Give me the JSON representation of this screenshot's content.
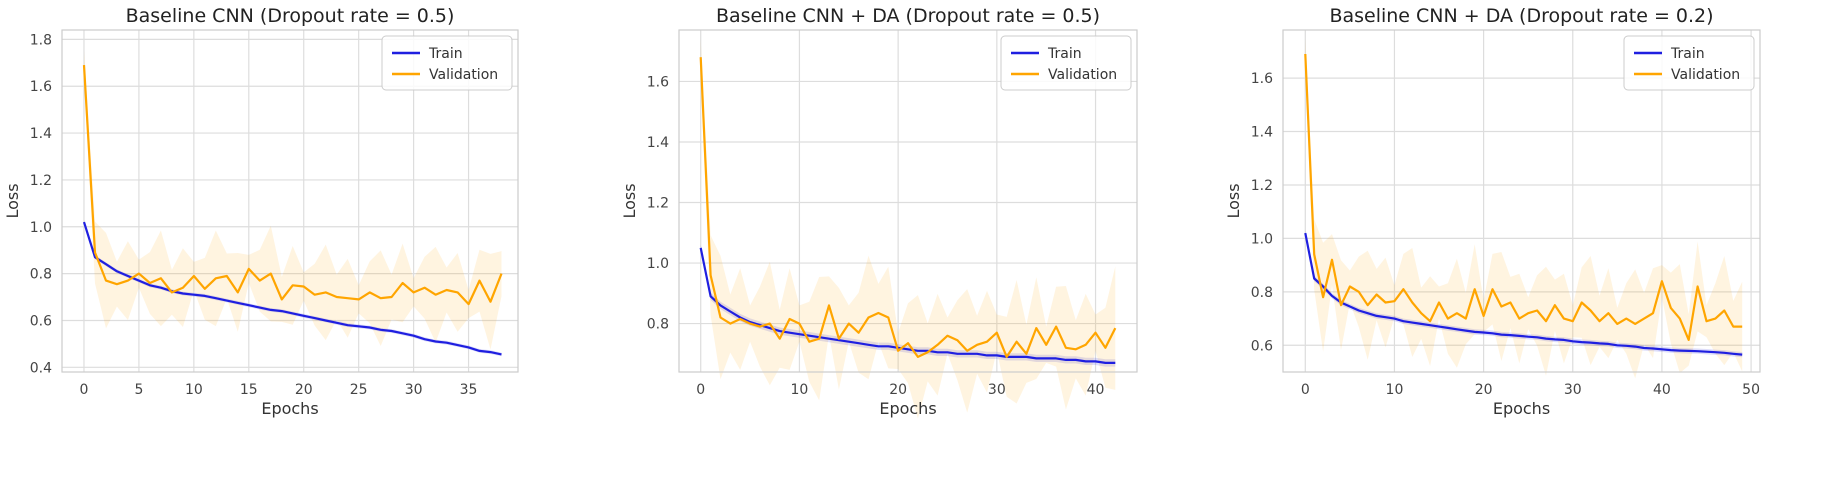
{
  "chart_data": [
    {
      "type": "line",
      "title": "Baseline CNN (Dropout rate = 0.5)",
      "xlabel": "Epochs",
      "ylabel": "Loss",
      "xlim": [
        -2,
        39.5
      ],
      "ylim": [
        0.38,
        1.84
      ],
      "xticks": [
        0,
        5,
        10,
        15,
        20,
        25,
        30,
        35
      ],
      "yticks": [
        0.4,
        0.6,
        0.8,
        1.0,
        1.2,
        1.4,
        1.6,
        1.8
      ],
      "ytick_labels": [
        "0.4",
        "0.6",
        "0.8",
        "1.0",
        "1.2",
        "1.4",
        "1.6",
        "1.8"
      ],
      "grid": true,
      "legend_position": "top-right",
      "series": [
        {
          "name": "Train",
          "color": "#1f1fe0",
          "values": [
            1.02,
            0.87,
            0.84,
            0.81,
            0.79,
            0.77,
            0.75,
            0.74,
            0.725,
            0.715,
            0.71,
            0.705,
            0.695,
            0.685,
            0.675,
            0.665,
            0.655,
            0.645,
            0.64,
            0.63,
            0.62,
            0.61,
            0.6,
            0.59,
            0.58,
            0.575,
            0.57,
            0.56,
            0.555,
            0.545,
            0.535,
            0.52,
            0.51,
            0.505,
            0.495,
            0.485,
            0.47,
            0.465,
            0.455
          ],
          "band": 0.008
        },
        {
          "name": "Validation",
          "color": "#ffa500",
          "values": [
            1.69,
            0.89,
            0.77,
            0.755,
            0.77,
            0.8,
            0.76,
            0.78,
            0.72,
            0.74,
            0.79,
            0.735,
            0.78,
            0.79,
            0.72,
            0.82,
            0.77,
            0.8,
            0.69,
            0.75,
            0.745,
            0.71,
            0.72,
            0.7,
            0.695,
            0.69,
            0.72,
            0.695,
            0.7,
            0.76,
            0.72,
            0.74,
            0.71,
            0.73,
            0.72,
            0.67,
            0.77,
            0.68,
            0.8
          ],
          "band": 0.06
        }
      ]
    },
    {
      "type": "line",
      "title": "Baseline CNN + DA (Dropout rate = 0.5)",
      "xlabel": "Epochs",
      "ylabel": "Loss",
      "xlim": [
        -2.2,
        44.2
      ],
      "ylim": [
        0.64,
        1.77
      ],
      "xticks": [
        0,
        10,
        20,
        30,
        40
      ],
      "yticks": [
        0.8,
        1.0,
        1.2,
        1.4,
        1.6
      ],
      "ytick_labels": [
        "0.8",
        "1.0",
        "1.2",
        "1.4",
        "1.6"
      ],
      "grid": true,
      "legend_position": "top-right",
      "series": [
        {
          "name": "Train",
          "color": "#1f1fe0",
          "values": [
            1.05,
            0.89,
            0.86,
            0.84,
            0.82,
            0.805,
            0.795,
            0.785,
            0.775,
            0.77,
            0.765,
            0.76,
            0.755,
            0.75,
            0.745,
            0.74,
            0.735,
            0.73,
            0.725,
            0.725,
            0.72,
            0.715,
            0.71,
            0.71,
            0.705,
            0.705,
            0.7,
            0.7,
            0.7,
            0.695,
            0.695,
            0.69,
            0.69,
            0.69,
            0.685,
            0.685,
            0.685,
            0.68,
            0.68,
            0.675,
            0.675,
            0.67,
            0.67
          ],
          "band": 0.012
        },
        {
          "name": "Validation",
          "color": "#ffa500",
          "values": [
            1.68,
            0.96,
            0.82,
            0.8,
            0.815,
            0.8,
            0.79,
            0.8,
            0.75,
            0.815,
            0.8,
            0.74,
            0.75,
            0.86,
            0.75,
            0.8,
            0.77,
            0.82,
            0.835,
            0.82,
            0.71,
            0.735,
            0.69,
            0.705,
            0.73,
            0.76,
            0.745,
            0.71,
            0.73,
            0.74,
            0.77,
            0.69,
            0.74,
            0.7,
            0.785,
            0.73,
            0.79,
            0.72,
            0.715,
            0.73,
            0.77,
            0.72,
            0.785
          ],
          "band": 0.06
        }
      ]
    },
    {
      "type": "line",
      "title": "Baseline CNN + DA (Dropout rate = 0.2)",
      "xlabel": "Epochs",
      "ylabel": "Loss",
      "xlim": [
        -2.5,
        51
      ],
      "ylim": [
        0.5,
        1.78
      ],
      "xticks": [
        0,
        10,
        20,
        30,
        40,
        50
      ],
      "yticks": [
        0.6,
        0.8,
        1.0,
        1.2,
        1.4,
        1.6
      ],
      "ytick_labels": [
        "0.6",
        "0.8",
        "1.0",
        "1.2",
        "1.4",
        "1.6"
      ],
      "grid": true,
      "legend_position": "top-right",
      "series": [
        {
          "name": "Train",
          "color": "#1f1fe0",
          "values": [
            1.02,
            0.85,
            0.82,
            0.785,
            0.76,
            0.745,
            0.73,
            0.72,
            0.71,
            0.705,
            0.7,
            0.69,
            0.685,
            0.68,
            0.675,
            0.67,
            0.665,
            0.66,
            0.655,
            0.65,
            0.648,
            0.645,
            0.64,
            0.638,
            0.635,
            0.632,
            0.63,
            0.625,
            0.622,
            0.62,
            0.615,
            0.612,
            0.61,
            0.607,
            0.605,
            0.6,
            0.598,
            0.595,
            0.59,
            0.588,
            0.585,
            0.582,
            0.58,
            0.579,
            0.578,
            0.576,
            0.574,
            0.572,
            0.568,
            0.565
          ],
          "band": 0.01
        },
        {
          "name": "Validation",
          "color": "#ffa500",
          "values": [
            1.69,
            0.94,
            0.78,
            0.92,
            0.75,
            0.82,
            0.8,
            0.75,
            0.79,
            0.76,
            0.765,
            0.81,
            0.76,
            0.72,
            0.69,
            0.76,
            0.7,
            0.72,
            0.7,
            0.81,
            0.71,
            0.81,
            0.745,
            0.76,
            0.7,
            0.72,
            0.73,
            0.69,
            0.75,
            0.7,
            0.69,
            0.76,
            0.73,
            0.69,
            0.72,
            0.68,
            0.7,
            0.68,
            0.7,
            0.72,
            0.84,
            0.74,
            0.7,
            0.62,
            0.82,
            0.69,
            0.7,
            0.73,
            0.67,
            0.67
          ],
          "band": 0.06
        }
      ]
    }
  ]
}
